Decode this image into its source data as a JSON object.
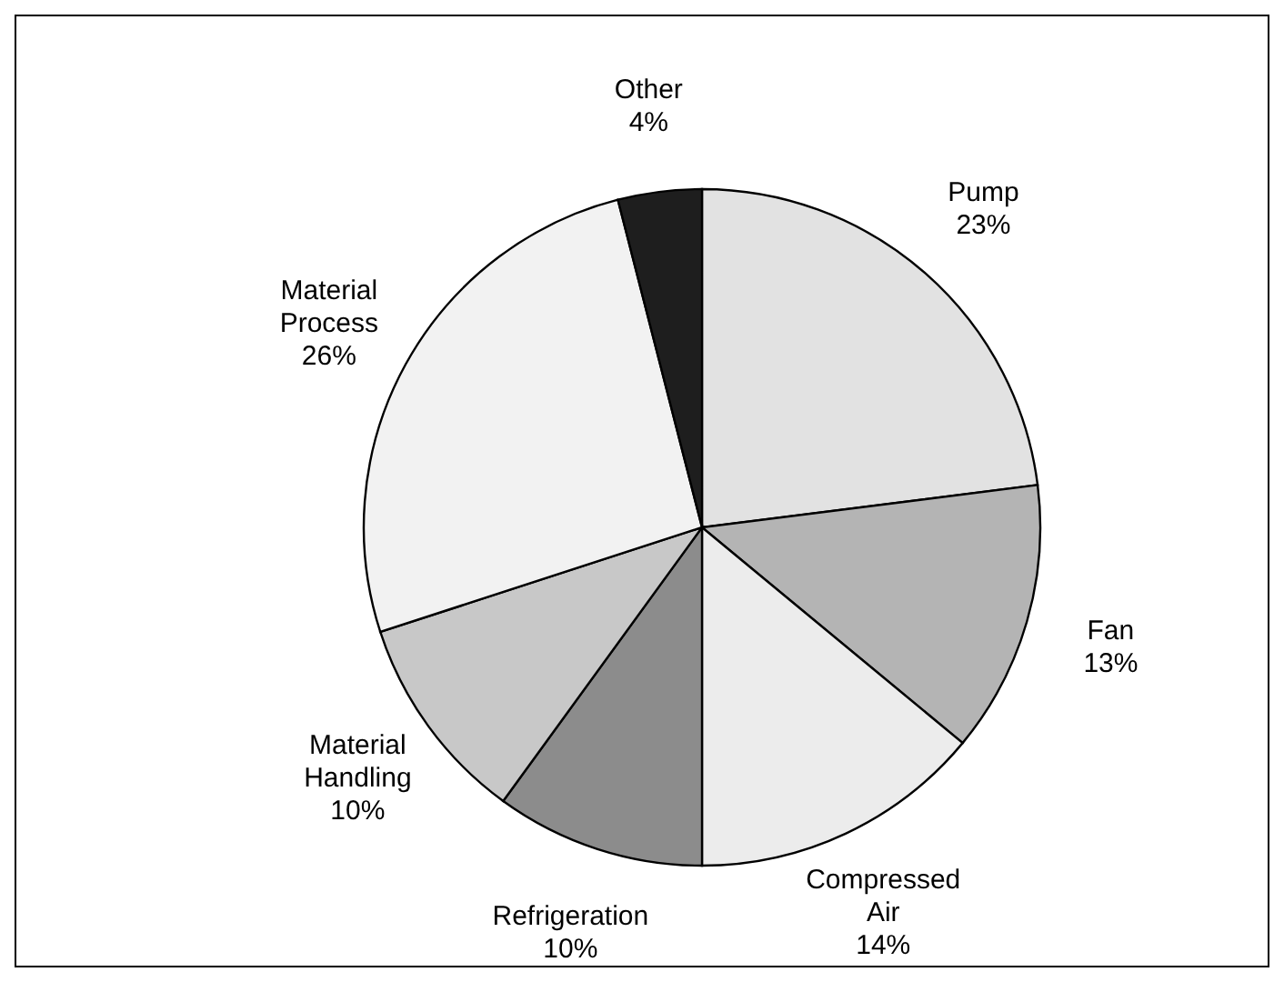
{
  "chart_data": {
    "type": "pie",
    "categories": [
      "Pump",
      "Fan",
      "Compressed Air",
      "Refrigeration",
      "Material Handling",
      "Material Process",
      "Other"
    ],
    "values": [
      23,
      13,
      14,
      10,
      10,
      26,
      4
    ],
    "value_labels": [
      "23%",
      "13%",
      "14%",
      "10%",
      "10%",
      "26%",
      "4%"
    ],
    "colors": [
      "#e2e2e2",
      "#b4b4b4",
      "#ececec",
      "#8c8c8c",
      "#c8c8c8",
      "#f2f2f2",
      "#1e1e1e"
    ]
  }
}
